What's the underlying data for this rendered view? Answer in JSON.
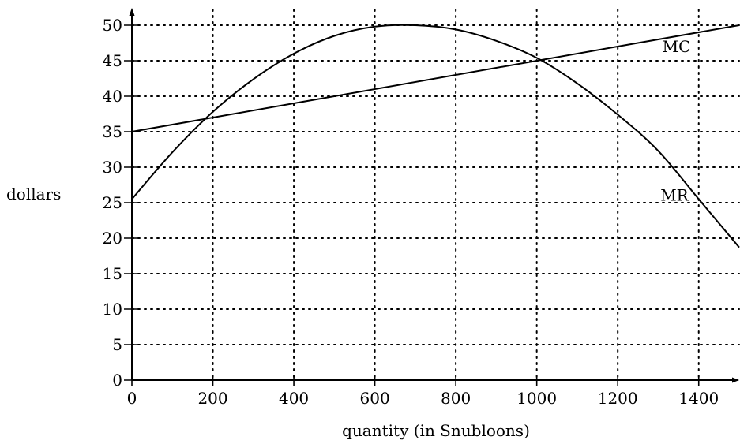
{
  "chart_data": {
    "type": "line",
    "title": "",
    "xlabel": "quantity (in Snubloons)",
    "ylabel": "dollars",
    "xlim": [
      0,
      1500
    ],
    "ylim": [
      0,
      52
    ],
    "x_ticks": [
      0,
      200,
      400,
      600,
      800,
      1000,
      1200,
      1400
    ],
    "y_ticks": [
      0,
      5,
      10,
      15,
      20,
      25,
      30,
      35,
      40,
      45,
      50
    ],
    "grid": true,
    "series": [
      {
        "name": "MC",
        "x": [
          0,
          1500
        ],
        "y": [
          35,
          50
        ]
      },
      {
        "name": "MR",
        "x": [
          0,
          100,
          200,
          300,
          400,
          500,
          600,
          700,
          800,
          900,
          1000,
          1100,
          1200,
          1300,
          1400,
          1500
        ],
        "y": [
          25.5,
          32.1,
          37.8,
          42.4,
          46.0,
          48.5,
          49.8,
          50.0,
          49.4,
          47.8,
          45.4,
          41.8,
          37.4,
          32.3,
          25.5,
          18.7
        ]
      }
    ]
  }
}
